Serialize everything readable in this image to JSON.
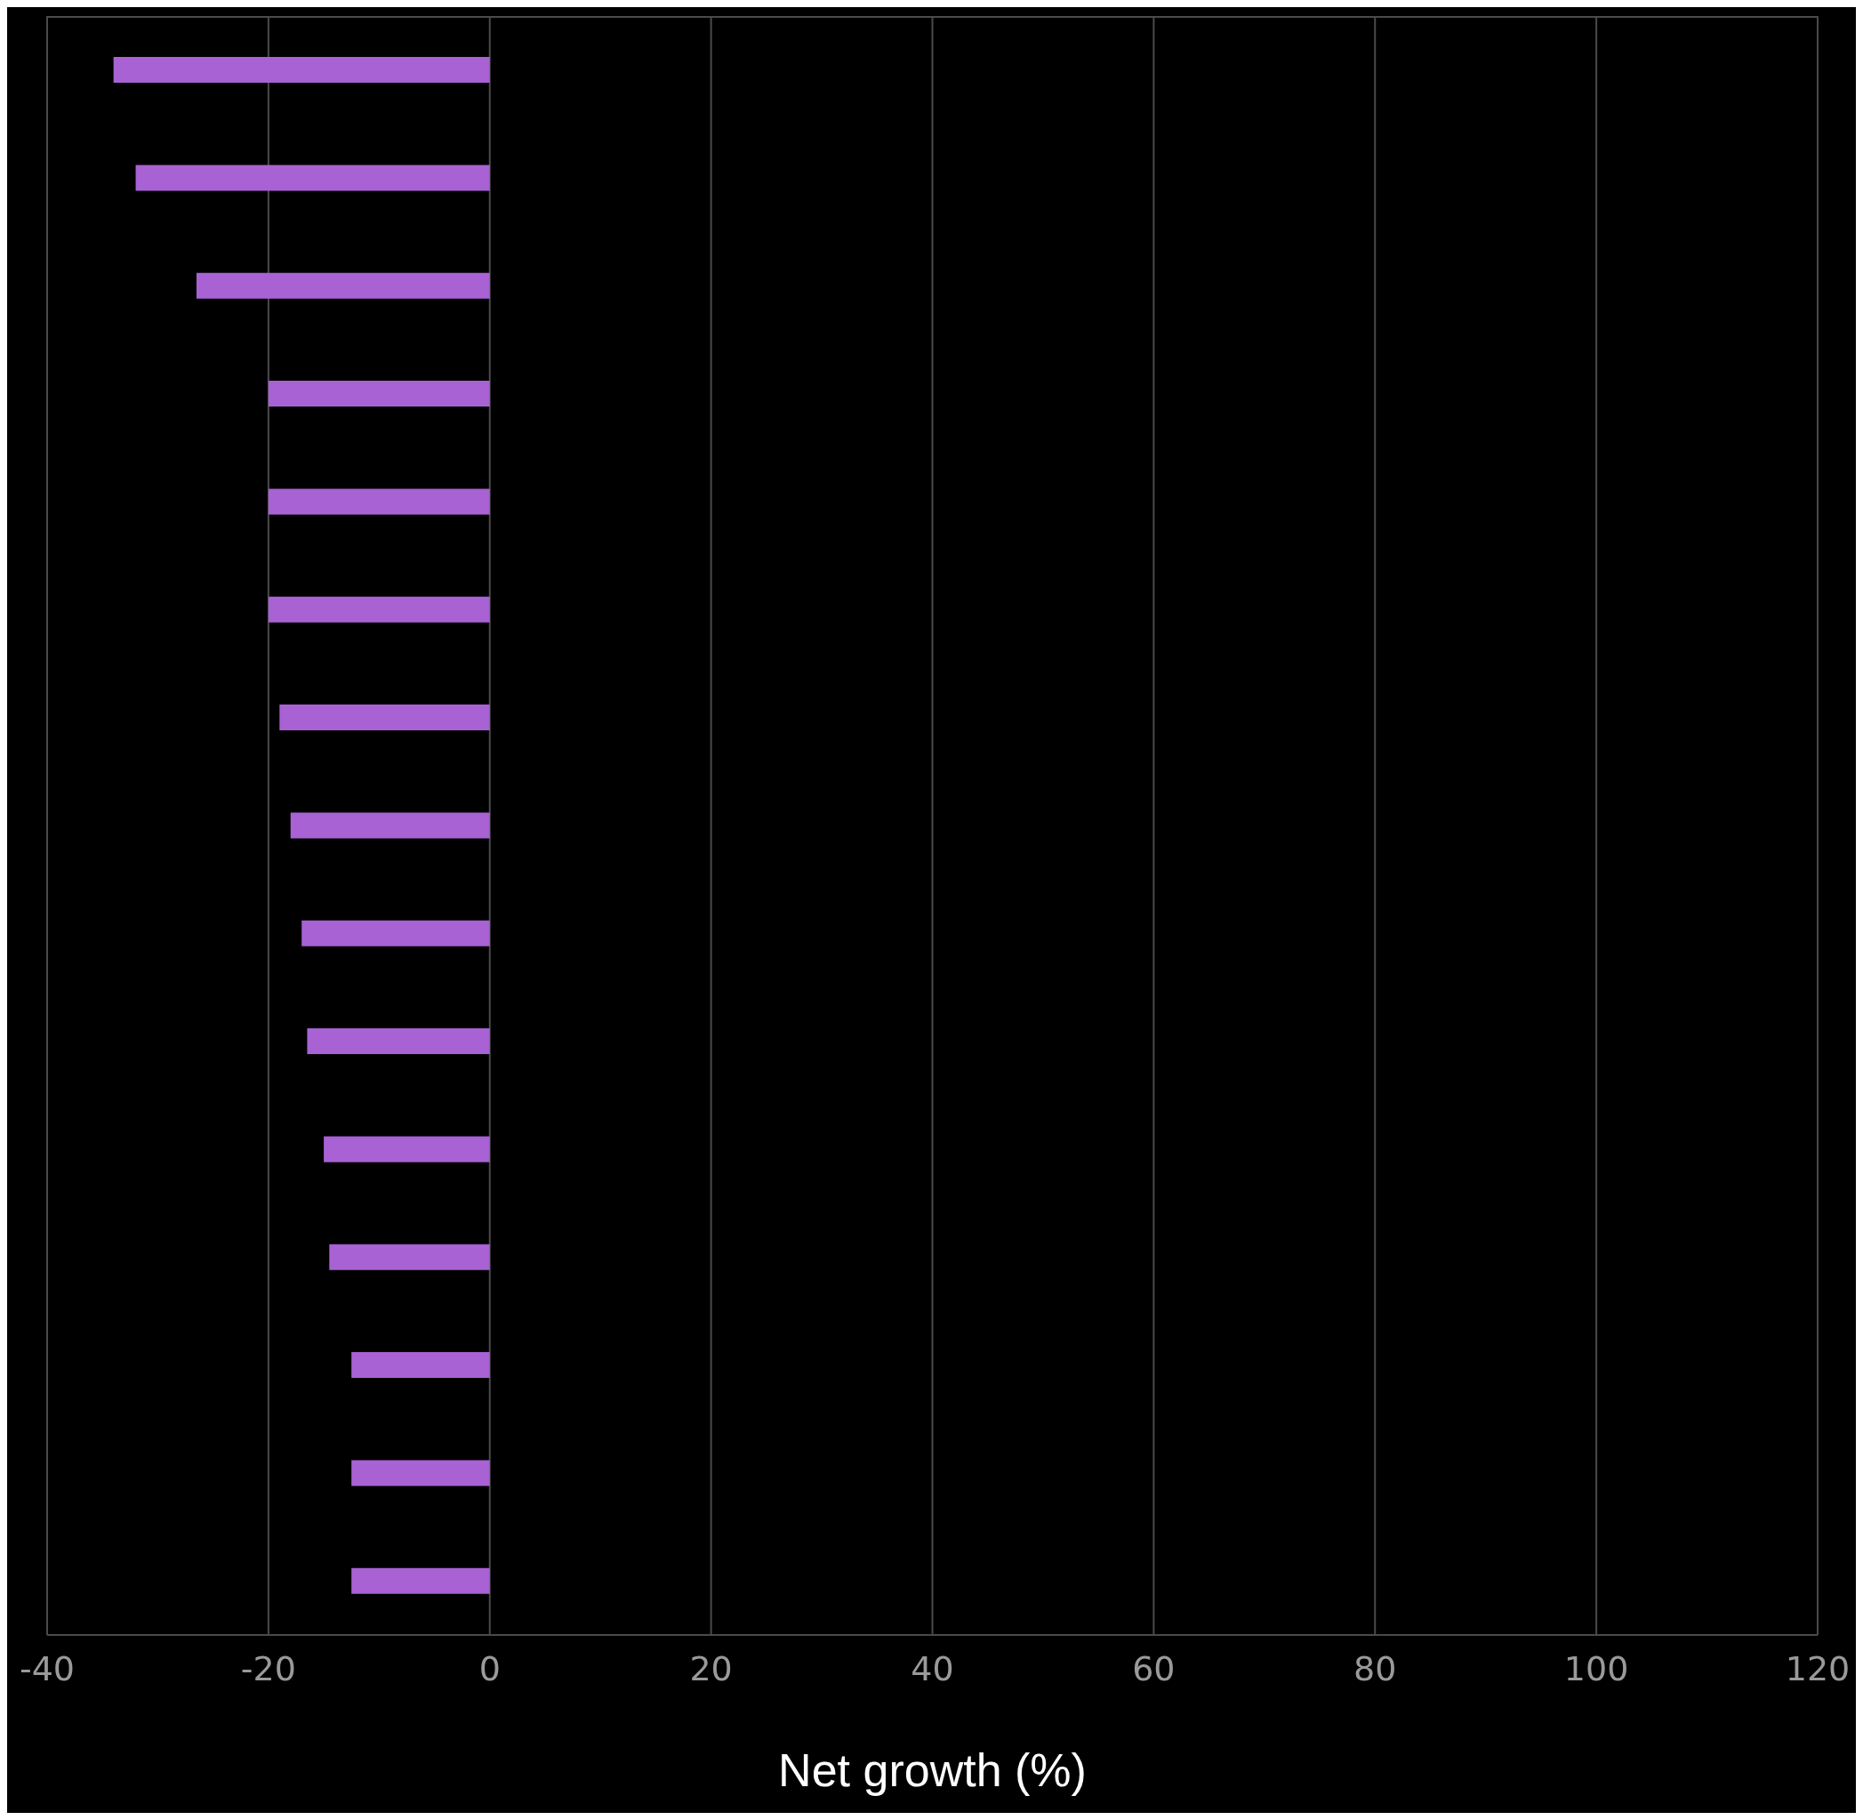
{
  "chart_data": {
    "type": "bar",
    "orientation": "horizontal",
    "xlabel": "Net growth (%)",
    "categories": [
      null,
      null,
      null,
      null,
      null,
      null,
      null,
      null,
      null,
      null,
      null,
      null,
      null,
      null,
      null
    ],
    "series": [
      {
        "color": "#a862d4",
        "values": [
          -34,
          -32,
          -26.5,
          -20,
          -20,
          -20,
          -19,
          -18,
          -17,
          -16.5,
          -15,
          -14.5,
          -12.5,
          -12.5,
          -12.5
        ]
      }
    ],
    "xlim": [
      -40,
      120
    ],
    "xticks": [
      -40,
      -20,
      0,
      20,
      40,
      60,
      80,
      100,
      120
    ],
    "grid": "x"
  }
}
